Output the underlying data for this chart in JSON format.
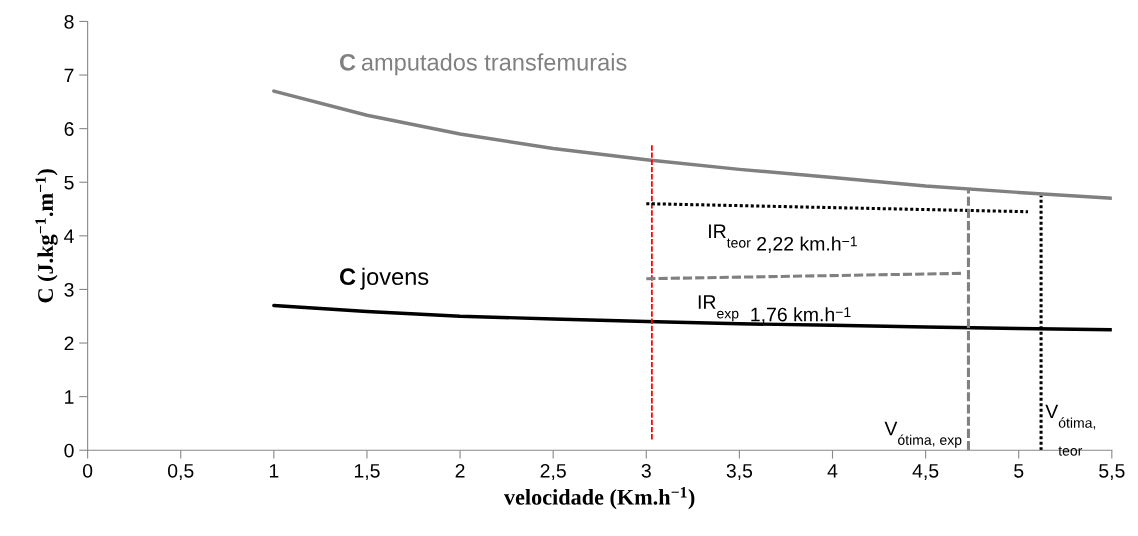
{
  "chart_data": {
    "type": "line",
    "xlabel": "velocidade (Km.h$^{−1}$)",
    "ylabel": "C (J.kg$^{−1}$.m$^{−1}$)",
    "xlim": [
      0,
      5.5
    ],
    "xticks": [
      0,
      {
        "value": 0.5,
        "label": "0,5"
      },
      1,
      {
        "value": 1.5,
        "label": "1,5"
      },
      2,
      {
        "value": 2.5,
        "label": "2,5"
      },
      3,
      {
        "value": 3.5,
        "label": "3,5"
      },
      4,
      {
        "value": 4.5,
        "label": "4,5"
      },
      5,
      {
        "value": 5.5,
        "label": "5,5"
      }
    ],
    "ylim": [
      0,
      8
    ],
    "yticks": [
      0,
      1,
      2,
      3,
      4,
      5,
      6,
      7,
      8
    ],
    "grid": false,
    "legend": false,
    "marker": "none",
    "series": [
      {
        "name": "C amputados transfemurais",
        "color": "#808080",
        "x": [
          1,
          1.5,
          2,
          2.5,
          3,
          3.5,
          4,
          4.5,
          5,
          5.5
        ],
        "values": [
          6.7,
          6.25,
          5.9,
          5.63,
          5.42,
          5.24,
          5.09,
          4.93,
          4.81,
          4.7
        ]
      },
      {
        "name": "C jovens",
        "color": "#000000",
        "x": [
          1,
          1.5,
          2,
          2.5,
          3,
          3.5,
          4,
          4.5,
          5,
          5.5
        ],
        "values": [
          2.7,
          2.59,
          2.5,
          2.45,
          2.4,
          2.36,
          2.33,
          2.3,
          2.27,
          2.25
        ]
      },
      {
        "color": "#ff0000",
        "line_style": "dashed",
        "x": [
          3.03,
          3.03
        ],
        "values": [
          0.2,
          5.7
        ]
      },
      {
        "color": "#000000",
        "line_style": "dotted",
        "x": [
          3.0,
          5.05
        ],
        "values": [
          4.6,
          4.45
        ]
      },
      {
        "color": "#808080",
        "line_style": "dashed",
        "x": [
          3.0,
          4.7
        ],
        "values": [
          3.2,
          3.3
        ]
      },
      {
        "color": "#808080",
        "line_style": "dashed",
        "x": [
          4.73,
          4.73
        ],
        "values": [
          0,
          4.85
        ]
      },
      {
        "color": "#000000",
        "line_style": "dotted",
        "x": [
          5.12,
          5.12
        ],
        "values": [
          0,
          4.75
        ]
      }
    ],
    "annotations": [
      "IR$_{teor}$ 2,22 km.h$^{−1}$",
      "IR$_{exp}$  1,76 km.h$^{−1}$",
      "V$_{ótima, exp}$",
      "V$_{ótima, teor}$"
    ]
  }
}
